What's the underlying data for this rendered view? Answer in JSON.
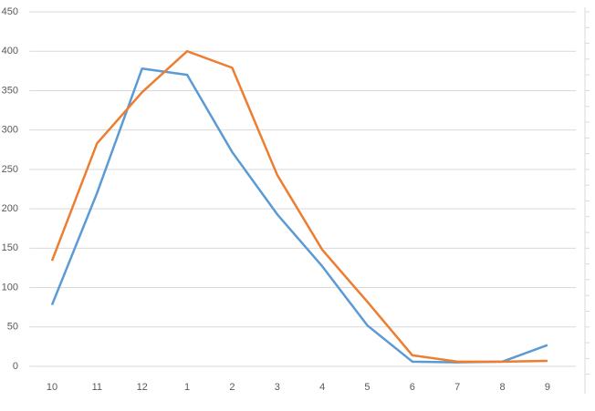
{
  "chart_data": {
    "type": "line",
    "categories": [
      "10",
      "11",
      "12",
      "1",
      "2",
      "3",
      "4",
      "5",
      "6",
      "7",
      "8",
      "9"
    ],
    "series": [
      {
        "color": "#5b9bd5",
        "values": [
          78,
          220,
          378,
          370,
          272,
          193,
          127,
          52,
          6,
          5,
          6,
          27
        ]
      },
      {
        "color": "#ed7d31",
        "values": [
          134,
          283,
          348,
          400,
          379,
          243,
          148,
          82,
          14,
          6,
          6,
          7
        ]
      }
    ],
    "ylim": [
      0,
      450
    ],
    "yticks": [
      0,
      50,
      100,
      150,
      200,
      250,
      300,
      350,
      400,
      450
    ],
    "grid": true
  }
}
